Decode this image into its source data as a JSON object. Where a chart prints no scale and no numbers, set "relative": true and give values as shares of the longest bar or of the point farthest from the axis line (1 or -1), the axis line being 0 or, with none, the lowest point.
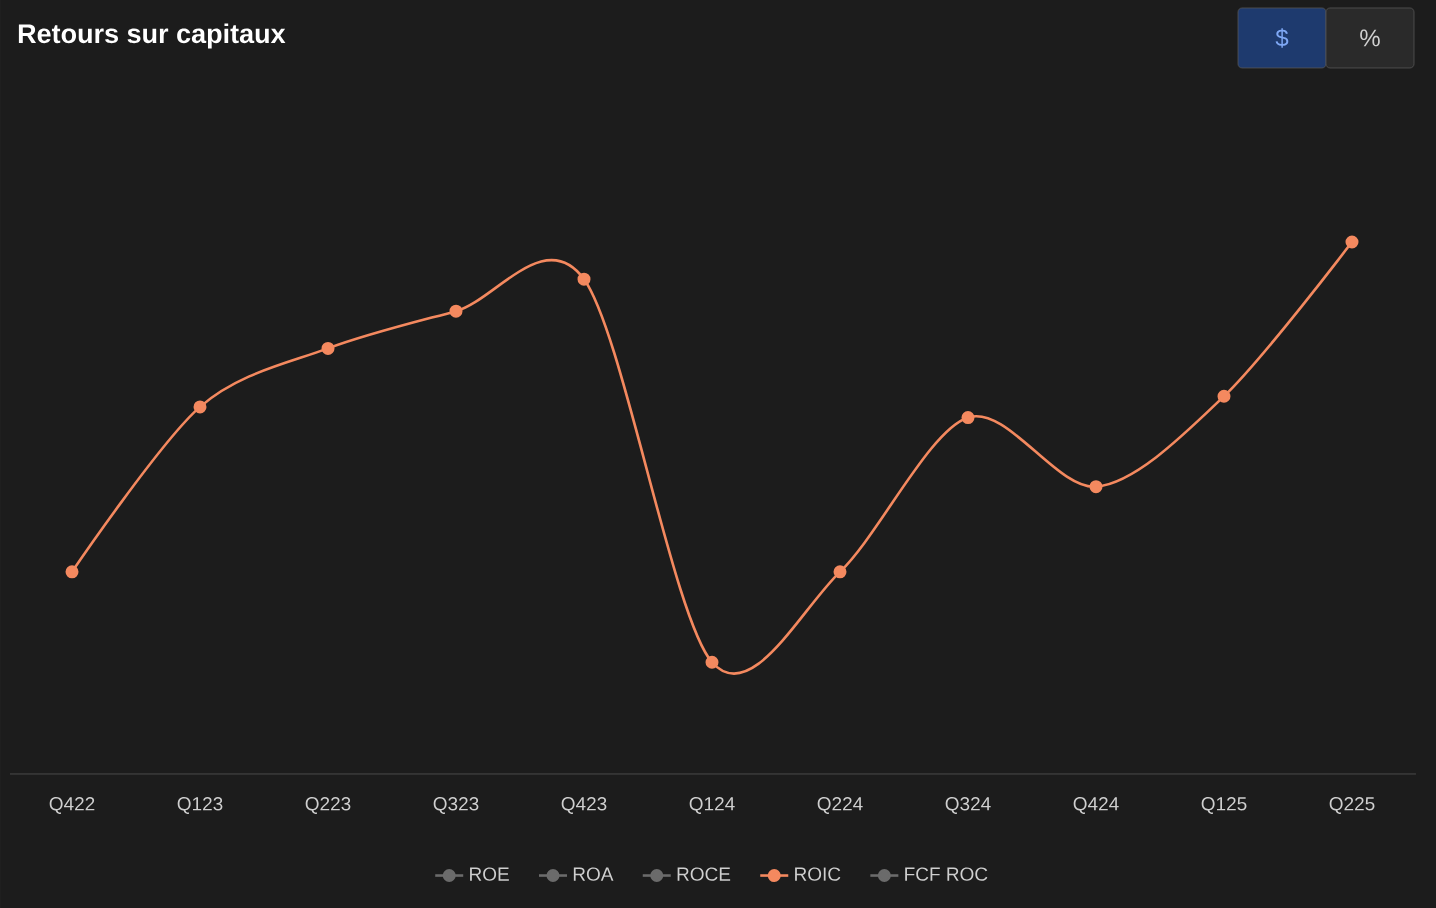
{
  "chart_data": {
    "type": "line",
    "title": "Retours sur capitaux",
    "relative": true,
    "categories": [
      "Q422",
      "Q123",
      "Q223",
      "Q323",
      "Q423",
      "Q124",
      "Q224",
      "Q324",
      "Q424",
      "Q125",
      "Q225"
    ],
    "series": [
      {
        "name": "ROE",
        "color": "#6b6b6b",
        "values": [
          null,
          null,
          null,
          null,
          null,
          null,
          null,
          null,
          null,
          null,
          null
        ]
      },
      {
        "name": "ROA",
        "color": "#6b6b6b",
        "values": [
          null,
          null,
          null,
          null,
          null,
          null,
          null,
          null,
          null,
          null,
          null
        ]
      },
      {
        "name": "ROCE",
        "color": "#6b6b6b",
        "values": [
          null,
          null,
          null,
          null,
          null,
          null,
          null,
          null,
          null,
          null,
          null
        ]
      },
      {
        "name": "ROIC",
        "color": "#f4895f",
        "values": [
          0.38,
          0.69,
          0.8,
          0.87,
          0.93,
          0.21,
          0.38,
          0.67,
          0.54,
          0.71,
          1
        ]
      },
      {
        "name": "FCF ROC",
        "color": "#6b6b6b",
        "values": [
          null,
          null,
          null,
          null,
          null,
          null,
          null,
          null,
          null,
          null,
          null
        ]
      }
    ],
    "annotations": [
      "$",
      "%"
    ],
    "legend": "bottom",
    "marker": "circle",
    "line_style": "solid"
  }
}
